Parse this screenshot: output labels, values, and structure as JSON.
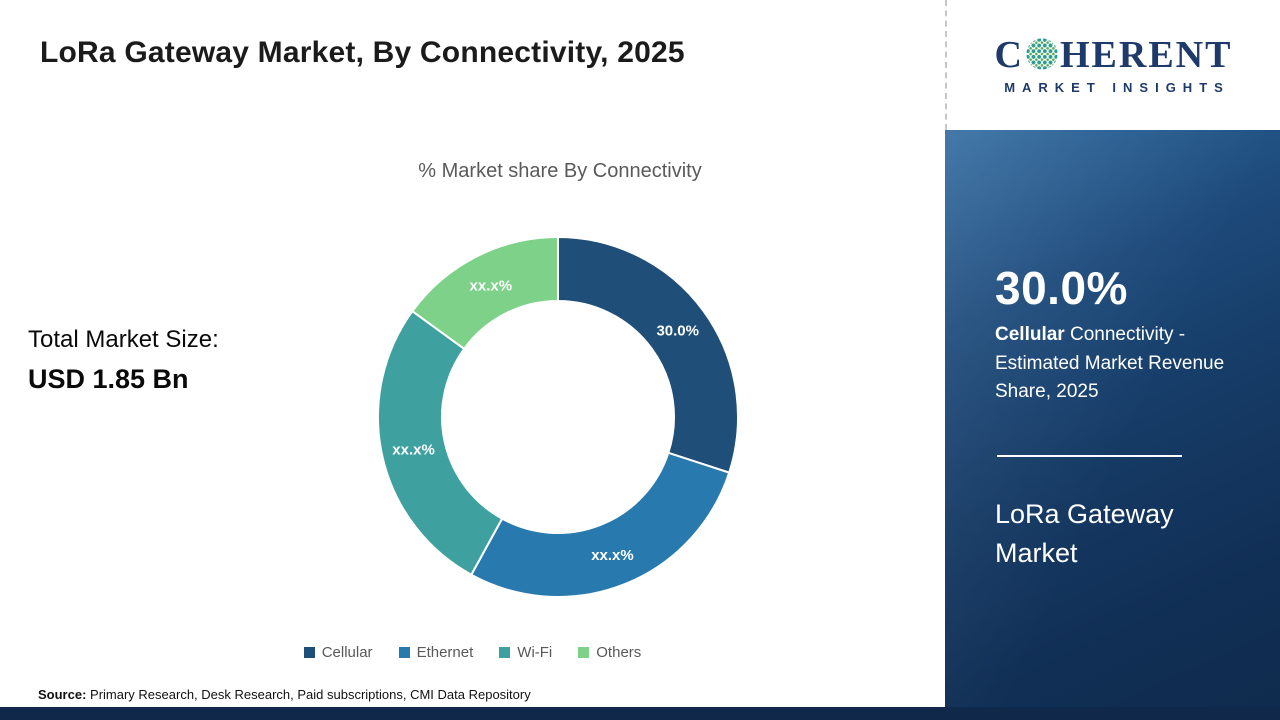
{
  "page": {
    "title": "LoRa Gateway Market, By Connectivity, 2025"
  },
  "totals": {
    "label": "Total Market Size:",
    "value": "USD 1.85 Bn"
  },
  "source": {
    "label": "Source:",
    "text": " Primary Research, Desk Research, Paid subscriptions, CMI Data Repository"
  },
  "sidebar": {
    "highlight_value": "30.0%",
    "highlight_segment": "Cellular",
    "highlight_desc": " Connectivity - Estimated Market Revenue Share, 2025",
    "report_name": "LoRa Gateway Market"
  },
  "logo": {
    "prefix": "C",
    "suffix": "HERENT",
    "tagline": "MARKET INSIGHTS"
  },
  "chart_data": {
    "type": "pie",
    "donut": true,
    "title": "% Market share By Connectivity",
    "categories": [
      "Cellular",
      "Ethernet",
      "Wi-Fi",
      "Others"
    ],
    "values": [
      30,
      28,
      27,
      15
    ],
    "slice_labels": [
      "30.0%",
      "xx.x%",
      "xx.x%",
      "xx.x%"
    ],
    "colors": [
      "#1f4e79",
      "#2879ae",
      "#3fa0a0",
      "#7ed189"
    ],
    "start_angle": 0,
    "legend_position": "bottom",
    "accent_colors": {
      "panel_navy": "#112f55",
      "bottom_bar": "#10294a",
      "logo_navy": "#1d3a6b"
    }
  }
}
